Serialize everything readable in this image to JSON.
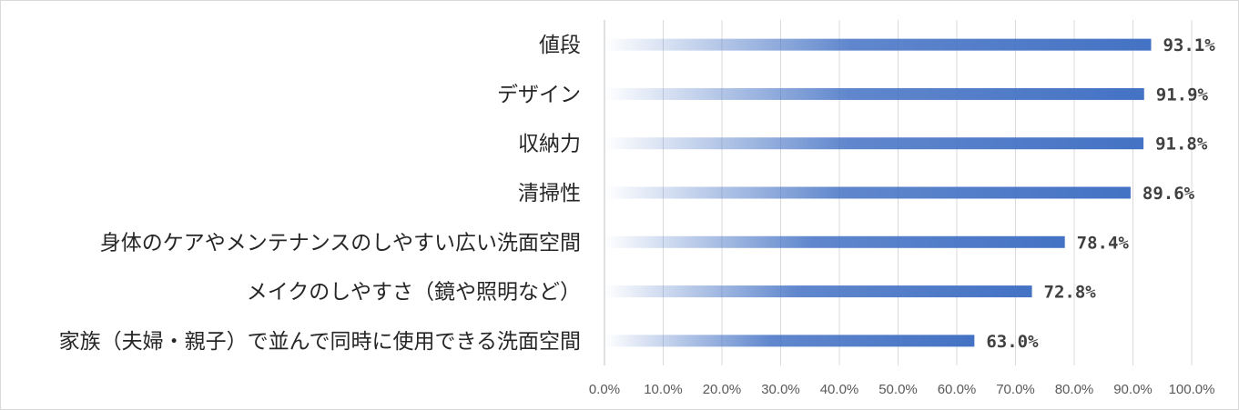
{
  "chart_data": {
    "type": "bar",
    "orientation": "horizontal",
    "categories": [
      "値段",
      "デザイン",
      "収納力",
      "清掃性",
      "身体のケアやメンテナンスのしやすい広い洗面空間",
      "メイクのしやすさ（鏡や照明など）",
      "家族（夫婦・親子）で並んで同時に使用できる洗面空間"
    ],
    "values": [
      93.1,
      91.9,
      91.8,
      89.6,
      78.4,
      72.8,
      63.0
    ],
    "data_labels": [
      "93.1%",
      "91.9%",
      "91.8%",
      "89.6%",
      "78.4%",
      "72.8%",
      "63.0%"
    ],
    "x_ticks": [
      "0.0%",
      "10.0%",
      "20.0%",
      "30.0%",
      "40.0%",
      "50.0%",
      "60.0%",
      "70.0%",
      "80.0%",
      "90.0%",
      "100.0%"
    ],
    "xlim": [
      0,
      100
    ],
    "grid": true,
    "bar_color": "#4472c4"
  }
}
